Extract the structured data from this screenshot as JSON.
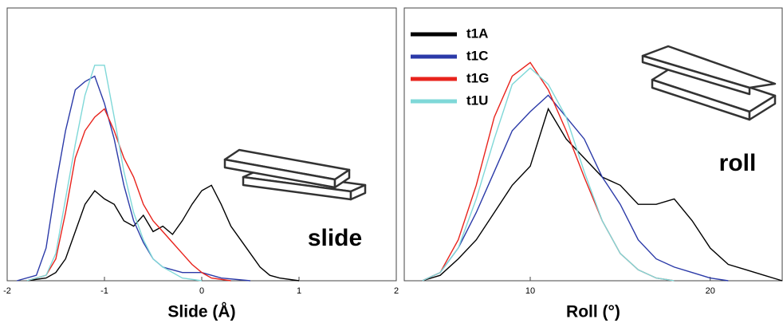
{
  "chart_data": [
    {
      "type": "line",
      "x_label": "Slide (Å)",
      "annotation": "slide",
      "xlim": [
        -2,
        2
      ],
      "xticks": [
        -2,
        -1,
        0,
        1,
        2
      ],
      "ylim": [
        0,
        100
      ],
      "series": [
        {
          "color": "#000000",
          "x": [
            -1.8,
            -1.6,
            -1.5,
            -1.4,
            -1.3,
            -1.2,
            -1.1,
            -1.0,
            -0.9,
            -0.8,
            -0.7,
            -0.6,
            -0.5,
            -0.4,
            -0.3,
            -0.2,
            -0.1,
            0.0,
            0.1,
            0.2,
            0.3,
            0.4,
            0.5,
            0.6,
            0.7,
            0.8,
            1.0
          ],
          "values": [
            0,
            1,
            3,
            8,
            18,
            28,
            33,
            30,
            28,
            22,
            20,
            24,
            18,
            20,
            17,
            22,
            28,
            33,
            35,
            28,
            20,
            15,
            10,
            5,
            2,
            1,
            0
          ]
        },
        {
          "color": "#2b3aa8",
          "x": [
            -1.9,
            -1.7,
            -1.6,
            -1.5,
            -1.4,
            -1.3,
            -1.2,
            -1.1,
            -1.0,
            -0.9,
            -0.8,
            -0.7,
            -0.6,
            -0.5,
            -0.4,
            -0.3,
            -0.2,
            0.0,
            0.2,
            0.5
          ],
          "values": [
            0,
            2,
            12,
            35,
            55,
            70,
            73,
            75,
            65,
            52,
            35,
            22,
            14,
            8,
            5,
            4,
            3,
            3,
            1,
            0
          ]
        },
        {
          "color": "#e8231c",
          "x": [
            -1.8,
            -1.6,
            -1.5,
            -1.4,
            -1.3,
            -1.2,
            -1.1,
            -1.0,
            -0.9,
            -0.8,
            -0.7,
            -0.6,
            -0.5,
            -0.4,
            -0.3,
            -0.2,
            -0.1,
            0.0,
            0.1,
            0.3
          ],
          "values": [
            0,
            2,
            8,
            25,
            45,
            55,
            60,
            63,
            55,
            45,
            38,
            28,
            22,
            18,
            14,
            10,
            6,
            3,
            1,
            0
          ]
        },
        {
          "color": "#7fd8d8",
          "x": [
            -1.8,
            -1.6,
            -1.5,
            -1.4,
            -1.3,
            -1.2,
            -1.1,
            -1.0,
            -0.9,
            -0.8,
            -0.7,
            -0.6,
            -0.5,
            -0.4,
            -0.3,
            -0.2,
            0.0
          ],
          "values": [
            0,
            2,
            10,
            30,
            50,
            68,
            79,
            79,
            60,
            40,
            25,
            15,
            8,
            5,
            3,
            1,
            0
          ]
        }
      ]
    },
    {
      "type": "line",
      "x_label": "Roll (°)",
      "annotation": "roll",
      "xlim": [
        3,
        24
      ],
      "xticks": [
        10,
        20
      ],
      "ylim": [
        0,
        100
      ],
      "legend": "top-left",
      "series": [
        {
          "name": "t1A",
          "color": "#000000",
          "x": [
            4,
            5,
            6,
            7,
            8,
            9,
            10,
            11,
            12,
            13,
            14,
            15,
            16,
            17,
            18,
            19,
            20,
            21,
            22,
            23,
            24
          ],
          "values": [
            0,
            2,
            8,
            15,
            25,
            35,
            42,
            63,
            52,
            45,
            38,
            35,
            28,
            28,
            30,
            22,
            12,
            6,
            4,
            2,
            0
          ]
        },
        {
          "name": "t1C",
          "color": "#2b3aa8",
          "x": [
            4,
            5,
            6,
            7,
            8,
            9,
            10,
            11,
            12,
            13,
            14,
            15,
            16,
            17,
            18,
            19,
            20,
            21
          ],
          "values": [
            0,
            3,
            12,
            25,
            40,
            55,
            62,
            68,
            60,
            52,
            38,
            28,
            15,
            8,
            5,
            3,
            1,
            0
          ]
        },
        {
          "name": "t1G",
          "color": "#e8231c",
          "x": [
            4,
            5,
            6,
            7,
            8,
            9,
            10,
            11,
            12,
            13,
            14,
            15,
            16,
            17,
            18
          ],
          "values": [
            0,
            3,
            15,
            35,
            60,
            75,
            80,
            70,
            55,
            38,
            22,
            10,
            4,
            1,
            0
          ]
        },
        {
          "name": "t1U",
          "color": "#7fd8d8",
          "x": [
            4,
            5,
            6,
            7,
            8,
            9,
            10,
            11,
            12,
            13,
            14,
            15,
            16,
            17,
            18
          ],
          "values": [
            0,
            3,
            12,
            30,
            52,
            72,
            78,
            72,
            60,
            40,
            22,
            10,
            4,
            1,
            0
          ]
        }
      ]
    }
  ]
}
